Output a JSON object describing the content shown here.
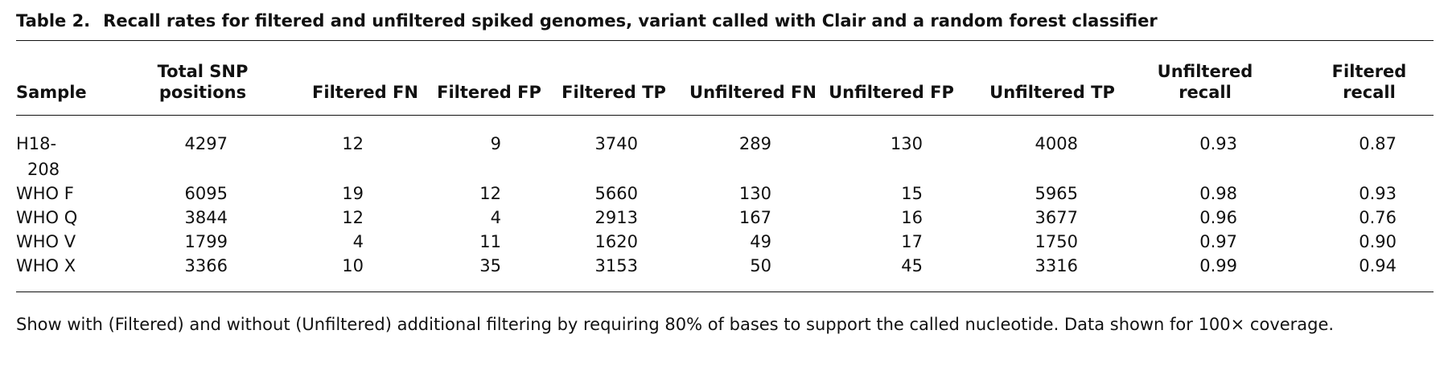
{
  "table": {
    "label": "Table 2.",
    "caption": "Recall rates for filtered and unfiltered spiked genomes, variant called with Clair and a random forest classifier",
    "columns": [
      "Sample",
      "Total SNP positions",
      "Filtered FN",
      "Filtered FP",
      "Filtered TP",
      "Unfiltered FN",
      "Unfiltered FP",
      "Unfiltered TP",
      "Unfiltered recall",
      "Filtered recall"
    ],
    "rows": [
      [
        "H18-208",
        "4297",
        "12",
        "9",
        "3740",
        "289",
        "130",
        "4008",
        "0.93",
        "0.87"
      ],
      [
        "WHO F",
        "6095",
        "19",
        "12",
        "5660",
        "130",
        "15",
        "5965",
        "0.98",
        "0.93"
      ],
      [
        "WHO Q",
        "3844",
        "12",
        "4",
        "2913",
        "167",
        "16",
        "3677",
        "0.96",
        "0.76"
      ],
      [
        "WHO V",
        "1799",
        "4",
        "11",
        "1620",
        "49",
        "17",
        "1750",
        "0.97",
        "0.90"
      ],
      [
        "WHO X",
        "3366",
        "10",
        "35",
        "3153",
        "50",
        "45",
        "3316",
        "0.99",
        "0.94"
      ]
    ],
    "footnote": "Show with (Filtered) and without (Unfiltered) additional filtering by requiring 80% of bases to support the called nucleotide. Data shown for 100× coverage."
  }
}
